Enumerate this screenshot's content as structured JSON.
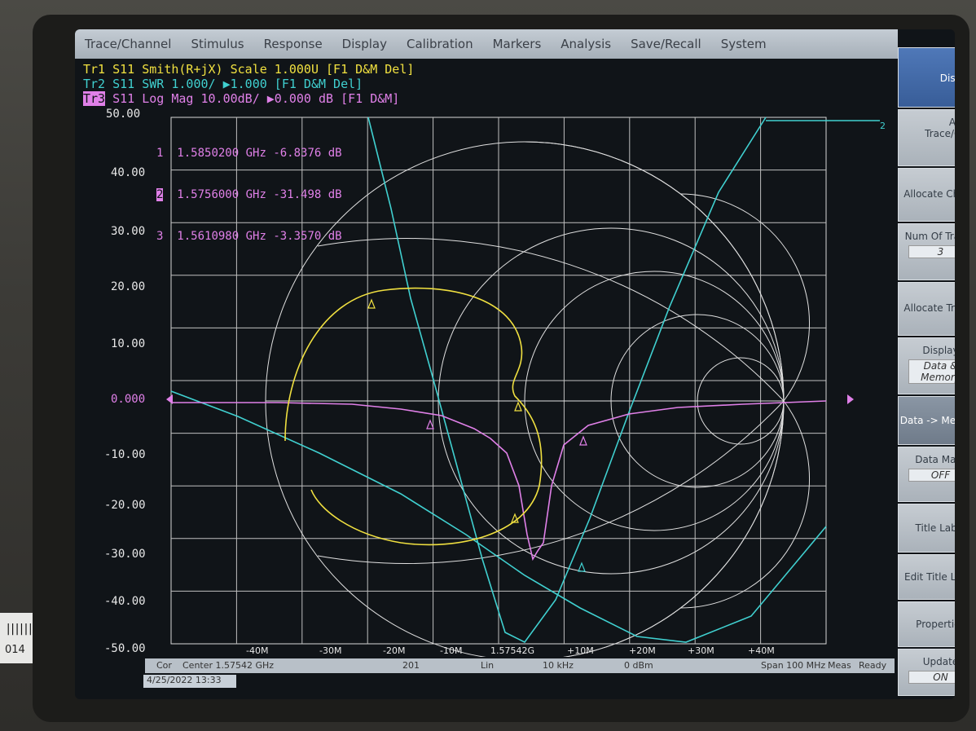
{
  "menu": [
    "Trace/Channel",
    "Stimulus",
    "Response",
    "Display",
    "Calibration",
    "Markers",
    "Analysis",
    "Save/Recall",
    "System"
  ],
  "traces": {
    "tr1": "Tr1 S11 Smith(R+jX) Scale 1.000U [F1 D&M Del]",
    "tr2": "Tr2 S11 SWR 1.000/ ▶1.000 [F1 D&M Del]",
    "tr3_tag": "Tr3",
    "tr3": " S11 Log Mag 10.00dB/ ▶0.000 dB [F1 D&M]"
  },
  "markers": [
    {
      "num": "1",
      "freq": "1.5850200 GHz",
      "value": "-6.8376 dB"
    },
    {
      "num": "2",
      "freq": "1.5756000 GHz",
      "value": "-31.498 dB"
    },
    {
      "num": "3",
      "freq": "1.5610980 GHz",
      "value": "-3.3570 dB"
    }
  ],
  "y_axis": [
    "50.00",
    "40.00",
    "30.00",
    "20.00",
    "10.00",
    "0.000",
    "-10.00",
    "-20.00",
    "-30.00",
    "-40.00",
    "-50.00"
  ],
  "x_axis": [
    "-40M",
    "-30M",
    "-20M",
    "-10M",
    "1.57542G",
    "+10M",
    "+20M",
    "+30M",
    "+40M"
  ],
  "softkeys": [
    {
      "label": "Display",
      "active": true
    },
    {
      "label": "Active Trace/Chan"
    },
    {
      "label": "Allocate Chann"
    },
    {
      "label": "Num Of Traces",
      "value": "3"
    },
    {
      "label": "Allocate Traces"
    },
    {
      "label": "Display",
      "value": "Data & Memory"
    },
    {
      "label": "Data -> Memory",
      "active": true
    },
    {
      "label": "Data Math",
      "value": "OFF"
    },
    {
      "label": "Title Label"
    },
    {
      "label": "Edit Title Label"
    },
    {
      "label": "Properties"
    },
    {
      "label": "Update",
      "value": "ON"
    }
  ],
  "status": {
    "cor": "Cor",
    "center": "Center 1.57542 GHz",
    "points": "201",
    "sweep": "Lin",
    "ifbw": "10 kHz",
    "power": "0 dBm",
    "span": "Span 100 MHz",
    "meas": "Meas",
    "ready": "Ready"
  },
  "datetime": "4/25/2022 13:33",
  "sticker": "014",
  "colors": {
    "tr1": "#f0e040",
    "tr2": "#40d0d0",
    "tr3": "#e080e8",
    "grid": "#d8d8d8"
  }
}
